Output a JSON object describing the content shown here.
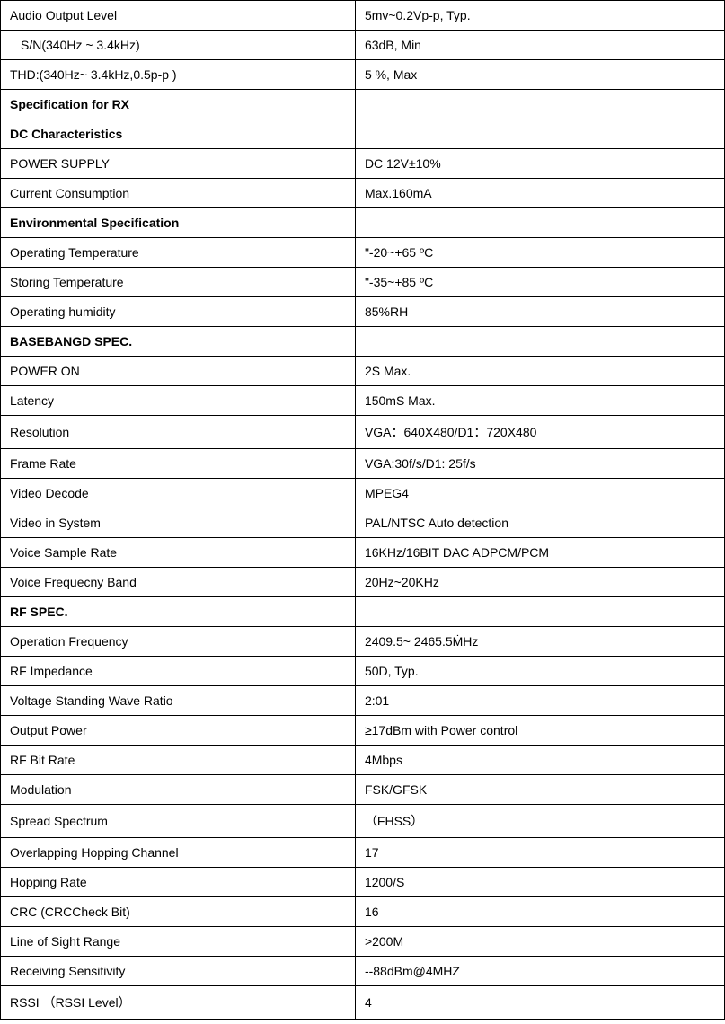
{
  "rows": [
    {
      "label": "Audio Output Level",
      "value": "5mv~0.2Vp-p, Typ.",
      "bold": false,
      "indent": false
    },
    {
      "label": "S/N(340Hz ~ 3.4kHz)",
      "value": "63dB, Min",
      "bold": false,
      "indent": true
    },
    {
      "label": "THD:(340Hz~ 3.4kHz,0.5p-p )",
      "value": "5 %, Max",
      "bold": false,
      "indent": false
    },
    {
      "label": "Specification for RX",
      "value": "",
      "bold": true,
      "indent": false
    },
    {
      "label": "DC Characteristics",
      "value": "",
      "bold": true,
      "indent": false
    },
    {
      "label": "POWER SUPPLY",
      "value": "DC 12V±10%",
      "bold": false,
      "indent": false
    },
    {
      "label": "Current Consumption",
      "value": " Max.160mA",
      "bold": false,
      "indent": false
    },
    {
      "label": "Environmental Specification",
      "value": "",
      "bold": true,
      "indent": false
    },
    {
      "label": "Operating Temperature",
      "value": "\"-20~+65 ºC",
      "bold": false,
      "indent": false
    },
    {
      "label": "Storing Temperature",
      "value": "\"-35~+85 ºC",
      "bold": false,
      "indent": false
    },
    {
      "label": "Operating humidity",
      "value": "85%RH",
      "bold": false,
      "indent": false
    },
    {
      "label": "BASEBANGD SPEC.",
      "value": "",
      "bold": true,
      "indent": false
    },
    {
      "label": "POWER ON",
      "value": "2S    Max.",
      "bold": false,
      "indent": false
    },
    {
      "label": "Latency",
      "value": "150mS    Max.",
      "bold": false,
      "indent": false
    },
    {
      "label": "Resolution",
      "value": "VGA：640X480/D1：720X480",
      "bold": false,
      "indent": false
    },
    {
      "label": "Frame Rate",
      "value": "VGA:30f/s/D1: 25f/s",
      "bold": false,
      "indent": false
    },
    {
      "label": "Video Decode",
      "value": "MPEG4",
      "bold": false,
      "indent": false
    },
    {
      "label": "Video in System",
      "value": "PAL/NTSC Auto detection",
      "bold": false,
      "indent": false
    },
    {
      "label": "Voice Sample Rate",
      "value": "16KHz/16BIT DAC ADPCM/PCM",
      "bold": false,
      "indent": false
    },
    {
      "label": "Voice Frequecny Band",
      "value": "20Hz~20KHz",
      "bold": false,
      "indent": false
    },
    {
      "label": "RF SPEC.",
      "value": "",
      "bold": true,
      "indent": false
    },
    {
      "label": "Operation Frequency",
      "value": "2409.5~ 2465.5ṀHz",
      "bold": false,
      "indent": false
    },
    {
      "label": "RF Impedance",
      "value": "50D, Typ.",
      "bold": false,
      "indent": false
    },
    {
      "label": "Voltage Standing Wave Ratio",
      "value": "2:01",
      "bold": false,
      "indent": false
    },
    {
      "label": "Output Power",
      "value": "≥17dBm with Power control",
      "bold": false,
      "indent": false
    },
    {
      "label": "RF Bit Rate",
      "value": "4Mbps",
      "bold": false,
      "indent": false
    },
    {
      "label": "Modulation",
      "value": "FSK/GFSK",
      "bold": false,
      "indent": false
    },
    {
      "label": "Spread Spectrum",
      "value": "（FHSS）",
      "bold": false,
      "indent": false
    },
    {
      "label": "Overlapping Hopping Channel",
      "value": "17",
      "bold": false,
      "indent": false
    },
    {
      "label": "Hopping Rate",
      "value": "1200/S",
      "bold": false,
      "indent": false
    },
    {
      "label": "CRC (CRCCheck Bit)",
      "value": "16",
      "bold": false,
      "indent": false
    },
    {
      "label": "Line of Sight Range",
      "value": ">200M",
      "bold": false,
      "indent": false
    },
    {
      "label": "Receiving Sensitivity",
      "value": "--88dBm@4MHZ",
      "bold": false,
      "indent": false
    },
    {
      "label": "RSSI （RSSI Level）",
      "value": "4",
      "bold": false,
      "indent": false
    }
  ]
}
